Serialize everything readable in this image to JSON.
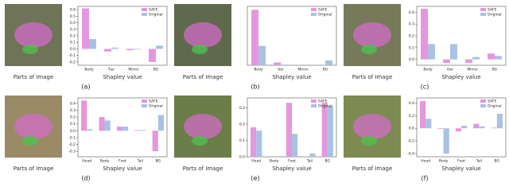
{
  "chart_data": [
    {
      "type": "bar",
      "caption": "(a)",
      "image_label": "Parts of Image",
      "xlabel": "Shapley value",
      "categories": [
        "Body",
        "Tier",
        "Mirror",
        "BG"
      ],
      "series": [
        {
          "name": "SAFE",
          "color": "#e497dc",
          "values": [
            0.62,
            -0.04,
            -0.02,
            -0.2
          ]
        },
        {
          "name": "Original",
          "color": "#a9c2e3",
          "values": [
            0.15,
            0.02,
            -0.01,
            0.05
          ]
        }
      ],
      "ylim": [
        -0.25,
        0.65
      ],
      "yticks": [
        -0.2,
        -0.1,
        {
          "value": 0,
          "label": "0.0"
        },
        0.1,
        0.2,
        0.3,
        0.4,
        0.5,
        0.6
      ]
    },
    {
      "type": "bar",
      "caption": "(b)",
      "image_label": "Parts of Image",
      "xlabel": "Shapley value",
      "categories": [
        "Body",
        "Itor",
        "Mirror",
        "BG"
      ],
      "series": [
        {
          "name": "SAFE",
          "color": "#e497dc",
          "values": [
            0.8,
            0.04,
            0,
            0
          ]
        },
        {
          "name": "Original",
          "color": "#a9c2e3",
          "values": [
            0.28,
            0.01,
            0,
            0.07
          ]
        }
      ],
      "ylim": [
        0,
        0.85
      ]
    },
    {
      "type": "bar",
      "caption": "(c)",
      "image_label": "Parts of Image",
      "xlabel": "Shapley value",
      "categories": [
        "Body",
        "Itor",
        "Mirror",
        "BG"
      ],
      "series": [
        {
          "name": "SAFE",
          "color": "#e497dc",
          "values": [
            0.43,
            -0.03,
            -0.03,
            0.05
          ]
        },
        {
          "name": "Original",
          "color": "#a9c2e3",
          "values": [
            0.13,
            0.13,
            0.02,
            0.03
          ]
        }
      ],
      "ylim": [
        -0.05,
        0.45
      ],
      "yticks": [
        {
          "value": 0,
          "label": "0.0"
        },
        0.1,
        0.2,
        0.3,
        0.4
      ]
    },
    {
      "type": "bar",
      "caption": "(d)",
      "image_label": "Parts of Image",
      "xlabel": "Shapley value",
      "categories": [
        "Head",
        "Body",
        "Foot",
        "Tail",
        "BG"
      ],
      "series": [
        {
          "name": "SAFE",
          "color": "#e497dc",
          "values": [
            0.44,
            0.2,
            0.06,
            0.01,
            -0.3
          ]
        },
        {
          "name": "Original",
          "color": "#a9c2e3",
          "values": [
            0.02,
            0.15,
            0.06,
            0.01,
            0.23
          ]
        }
      ],
      "ylim": [
        -0.38,
        0.48
      ],
      "yticks": [
        -0.3,
        -0.2,
        -0.1,
        {
          "value": 0,
          "label": "0.0"
        },
        0.1,
        0.2,
        0.3,
        0.4
      ]
    },
    {
      "type": "bar",
      "caption": "(e)",
      "image_label": "Parts of Image",
      "xlabel": "Shapley value",
      "categories": [
        "Head",
        "Body",
        "Foot",
        "Tail",
        "BG"
      ],
      "series": [
        {
          "name": "SAFE",
          "color": "#e497dc",
          "values": [
            0.18,
            0,
            0.33,
            0,
            0.33
          ]
        },
        {
          "name": "Original",
          "color": "#a9c2e3",
          "values": [
            0.16,
            0,
            0.14,
            0.02,
            0.31
          ]
        }
      ],
      "ylim": [
        0,
        0.36
      ],
      "yticks": [
        {
          "value": 0,
          "label": "0.0"
        },
        0.1,
        0.2,
        0.3
      ]
    },
    {
      "type": "bar",
      "caption": "(f)",
      "image_label": "Parts of Image",
      "xlabel": "Shapley value",
      "categories": [
        "Head",
        "Body",
        "Foot",
        "Tail",
        "BG"
      ],
      "series": [
        {
          "name": "SAFE",
          "color": "#e497dc",
          "values": [
            0.43,
            -0.01,
            -0.05,
            0.07,
            0.01
          ]
        },
        {
          "name": "Original",
          "color": "#a9c2e3",
          "values": [
            0.15,
            -0.4,
            0.04,
            0.03,
            0.23
          ]
        }
      ],
      "ylim": [
        -0.45,
        0.48
      ],
      "yticks": [
        -0.4,
        -0.2,
        {
          "value": 0,
          "label": "0.0"
        },
        0.2,
        0.4
      ]
    }
  ]
}
